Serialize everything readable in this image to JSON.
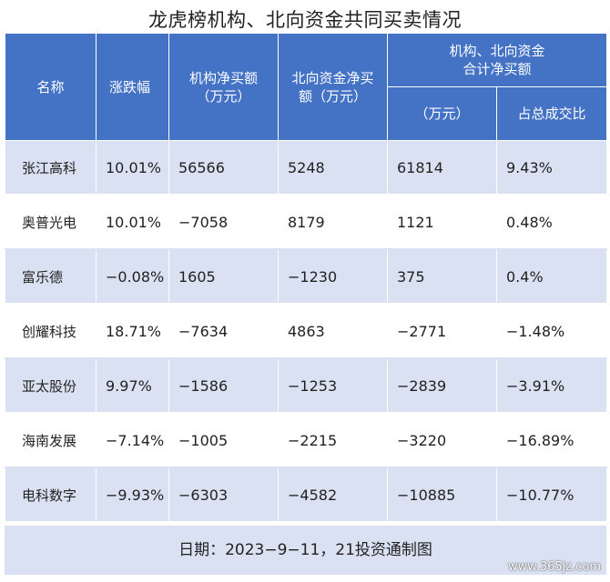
{
  "title": "龙虎榜机构、北向资金共同买卖情况",
  "headers": {
    "name": "名称",
    "change": "涨跌幅",
    "inst": "机构净买额\n（万元）",
    "north": "北向资金净买\n额（万元）",
    "combined": "机构、北向资金\n合计净买额",
    "combined_unit": "（万元）",
    "ratio": "占总成交比"
  },
  "rows": [
    {
      "name": "张江高科",
      "change": "10.01%",
      "inst": "56566",
      "north": "5248",
      "combined": "61814",
      "ratio": "9.43%"
    },
    {
      "name": "奥普光电",
      "change": "10.01%",
      "inst": "−7058",
      "north": "8179",
      "combined": "1121",
      "ratio": "0.48%"
    },
    {
      "name": "富乐德",
      "change": "−0.08%",
      "inst": "1605",
      "north": "−1230",
      "combined": "375",
      "ratio": "0.4%"
    },
    {
      "name": "创耀科技",
      "change": "18.71%",
      "inst": "−7634",
      "north": "4863",
      "combined": "−2771",
      "ratio": "−1.48%"
    },
    {
      "name": "亚太股份",
      "change": "9.97%",
      "inst": "−1586",
      "north": "−1253",
      "combined": "−2839",
      "ratio": "−3.91%"
    },
    {
      "name": "海南发展",
      "change": "−7.14%",
      "inst": "−1005",
      "north": "−2215",
      "combined": "−3220",
      "ratio": "−16.89%"
    },
    {
      "name": "电科数字",
      "change": "−9.93%",
      "inst": "−6303",
      "north": "−4582",
      "combined": "−10885",
      "ratio": "−10.77%"
    }
  ],
  "footer": "日期：2023−9−11，21投资通制图",
  "watermark": "www.365jz.com",
  "colors": {
    "header_bg": "#4472c4",
    "row_alt_bg": "#d9e1f2",
    "text": "#222222"
  }
}
